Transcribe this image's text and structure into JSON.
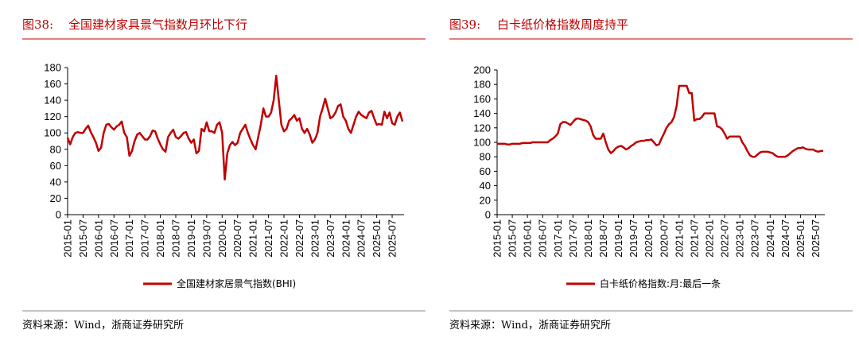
{
  "figures": [
    {
      "label": "图38:",
      "title": "全国建材家具景气指数月环比下行",
      "source": "资料来源：Wind，浙商证券研究所"
    },
    {
      "label": "图39:",
      "title": "白卡纸价格指数周度持平",
      "source": "资料来源：Wind，浙商证券研究所"
    }
  ],
  "chart_data": [
    {
      "type": "line",
      "categories": [
        "2015-01",
        null,
        null,
        null,
        null,
        null,
        "2015-07",
        null,
        null,
        null,
        null,
        null,
        "2016-01",
        null,
        null,
        null,
        null,
        null,
        "2016-07",
        null,
        null,
        null,
        null,
        null,
        "2017-01",
        null,
        null,
        null,
        null,
        null,
        "2017-07",
        null,
        null,
        null,
        null,
        null,
        "2018-01",
        null,
        null,
        null,
        null,
        null,
        "2018-07",
        null,
        null,
        null,
        null,
        null,
        "2019-01",
        null,
        null,
        null,
        null,
        null,
        "2019-07",
        null,
        null,
        null,
        null,
        null,
        "2020-01",
        null,
        null,
        null,
        null,
        null,
        "2020-07",
        null,
        null,
        null,
        null,
        null,
        "2021-01",
        null,
        null,
        null,
        null,
        null,
        "2021-07",
        null,
        null,
        null,
        null,
        null,
        "2022-01",
        null,
        null,
        null,
        null,
        null,
        "2022-07",
        null,
        null,
        null,
        null,
        null,
        "2023-01",
        null,
        null,
        null,
        null,
        null,
        "2023-07",
        null,
        null,
        null,
        null,
        null,
        "2024-01",
        null,
        null,
        null,
        null,
        null,
        "2024-07",
        null,
        null,
        null,
        null,
        null,
        "2025-01",
        null,
        null,
        null,
        null,
        null,
        "2025-07",
        null,
        null,
        null,
        null
      ],
      "series": [
        {
          "name": "全国建材家居景气指数(BHI)",
          "color": "#c00000",
          "values": [
            94,
            86,
            95,
            100,
            101,
            100,
            100,
            105,
            109,
            101,
            95,
            88,
            78,
            82,
            100,
            110,
            111,
            107,
            104,
            108,
            110,
            114,
            100,
            95,
            72,
            78,
            90,
            98,
            100,
            96,
            92,
            92,
            96,
            103,
            102,
            93,
            86,
            80,
            77,
            95,
            100,
            104,
            95,
            93,
            96,
            100,
            101,
            93,
            88,
            92,
            75,
            78,
            105,
            102,
            113,
            102,
            102,
            100,
            110,
            113,
            100,
            43,
            75,
            85,
            89,
            85,
            88,
            100,
            105,
            110,
            100,
            92,
            85,
            80,
            95,
            110,
            130,
            120,
            120,
            125,
            140,
            170,
            140,
            110,
            102,
            105,
            115,
            118,
            122,
            115,
            118,
            105,
            100,
            105,
            98,
            88,
            92,
            100,
            120,
            130,
            142,
            130,
            118,
            120,
            125,
            133,
            135,
            120,
            115,
            105,
            100,
            110,
            120,
            126,
            122,
            120,
            118,
            125,
            127,
            118,
            110,
            111,
            110,
            126,
            118,
            125,
            112,
            110,
            120,
            125,
            114
          ]
        }
      ],
      "ylim": [
        0,
        180
      ],
      "yticks": [
        0,
        20,
        40,
        60,
        80,
        100,
        120,
        140,
        160,
        180
      ],
      "grid": false
    },
    {
      "type": "line",
      "categories": [
        "2015-01",
        null,
        null,
        null,
        null,
        null,
        "2015-07",
        null,
        null,
        null,
        null,
        null,
        "2016-01",
        null,
        null,
        null,
        null,
        null,
        "2016-07",
        null,
        null,
        null,
        null,
        null,
        "2017-01",
        null,
        null,
        null,
        null,
        null,
        "2017-07",
        null,
        null,
        null,
        null,
        null,
        "2018-01",
        null,
        null,
        null,
        null,
        null,
        "2018-07",
        null,
        null,
        null,
        null,
        null,
        "2019-01",
        null,
        null,
        null,
        null,
        null,
        "2019-07",
        null,
        null,
        null,
        null,
        null,
        "2020-01",
        null,
        null,
        null,
        null,
        null,
        "2020-07",
        null,
        null,
        null,
        null,
        null,
        "2021-01",
        null,
        null,
        null,
        null,
        null,
        "2021-07",
        null,
        null,
        null,
        null,
        null,
        "2022-01",
        null,
        null,
        null,
        null,
        null,
        "2022-07",
        null,
        null,
        null,
        null,
        null,
        "2023-01",
        null,
        null,
        null,
        null,
        null,
        "2023-07",
        null,
        null,
        null,
        null,
        null,
        "2024-01",
        null,
        null,
        null,
        null,
        null,
        "2024-07",
        null,
        null,
        null,
        null,
        null,
        "2025-01",
        null,
        null,
        null,
        null,
        null,
        "2025-07",
        null,
        null,
        null
      ],
      "series": [
        {
          "name": "白卡纸价格指数:月:最后一条",
          "color": "#c00000",
          "values": [
            98,
            98,
            98,
            98,
            97,
            97,
            98,
            98,
            98,
            98,
            99,
            99,
            99,
            99,
            100,
            100,
            100,
            100,
            100,
            100,
            100,
            103,
            105,
            108,
            112,
            125,
            128,
            128,
            126,
            124,
            128,
            132,
            133,
            132,
            131,
            130,
            128,
            122,
            110,
            105,
            105,
            105,
            112,
            100,
            90,
            85,
            88,
            92,
            94,
            95,
            93,
            90,
            92,
            95,
            97,
            100,
            101,
            102,
            102,
            103,
            103,
            104,
            100,
            96,
            97,
            105,
            112,
            120,
            125,
            128,
            135,
            150,
            178,
            178,
            178,
            178,
            168,
            168,
            130,
            132,
            132,
            135,
            140,
            140,
            140,
            140,
            140,
            122,
            121,
            118,
            112,
            105,
            108,
            108,
            108,
            108,
            108,
            100,
            95,
            88,
            82,
            80,
            80,
            83,
            86,
            87,
            87,
            87,
            86,
            85,
            82,
            80,
            80,
            80,
            80,
            82,
            85,
            88,
            90,
            92,
            92,
            93,
            91,
            90,
            90,
            90,
            88,
            87,
            88,
            88
          ]
        }
      ],
      "ylim": [
        0,
        200
      ],
      "yticks": [
        0,
        20,
        40,
        60,
        80,
        100,
        120,
        140,
        160,
        180,
        200
      ],
      "grid": false
    }
  ]
}
